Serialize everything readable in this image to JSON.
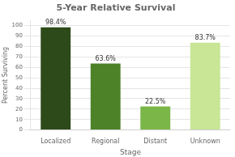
{
  "chart_data": {
    "type": "bar",
    "title": "5-Year Relative Survival",
    "categories": [
      "Localized",
      "Regional",
      "Distant",
      "Unknown"
    ],
    "values": [
      98.4,
      63.6,
      22.5,
      83.7
    ],
    "value_labels": [
      "98.4%",
      "63.6%",
      "22.5%",
      "83.7%"
    ],
    "colors": [
      "#2d4a1a",
      "#4d8228",
      "#7ab648",
      "#c8e696"
    ],
    "xlabel": "Stage",
    "ylabel": "Percent Surviving",
    "ylim": [
      0,
      105
    ],
    "yticks": [
      0,
      10,
      20,
      30,
      40,
      50,
      60,
      70,
      80,
      90,
      100
    ],
    "grid": true,
    "data_labels": true
  }
}
